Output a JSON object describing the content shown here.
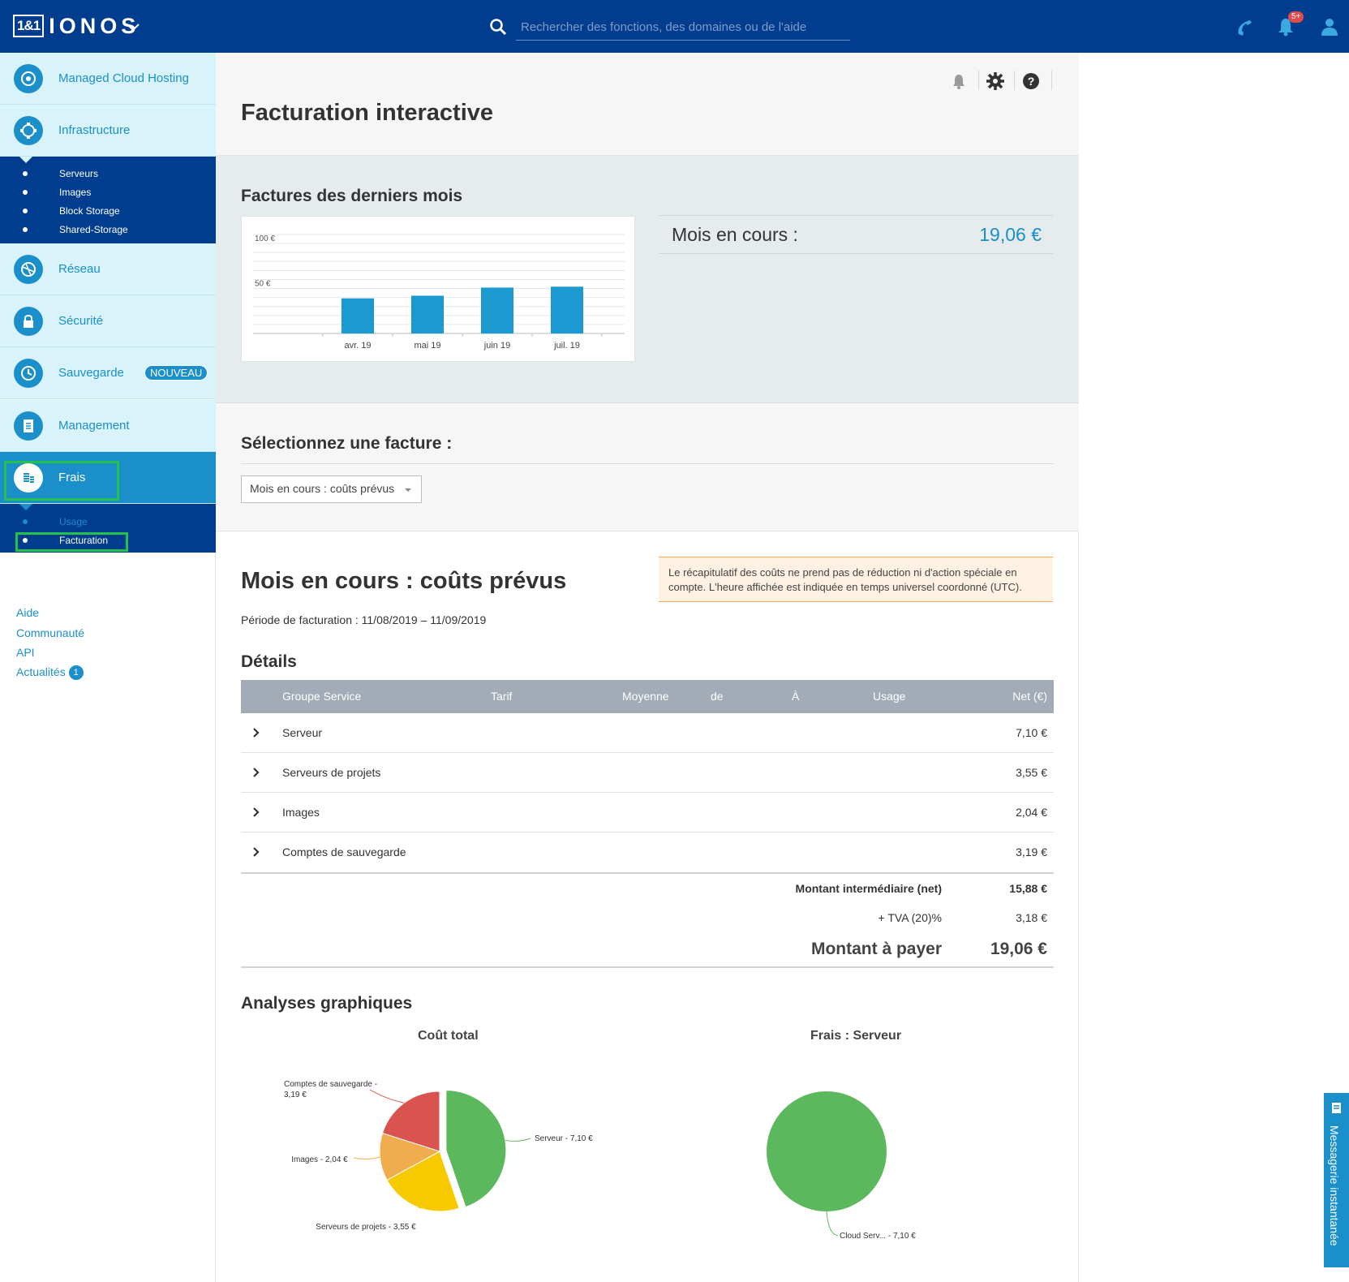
{
  "topbar": {
    "logo_box": "1&1",
    "logo_text": "IONOS",
    "search_placeholder": "Rechercher des fonctions, des domaines ou de l'aide",
    "notification_count": "5+"
  },
  "sidebar": {
    "items": [
      {
        "label": "Managed Cloud Hosting",
        "icon": "cloud-hosting-icon"
      },
      {
        "label": "Infrastructure",
        "icon": "infrastructure-icon"
      },
      {
        "label": "Réseau",
        "icon": "network-icon"
      },
      {
        "label": "Sécurité",
        "icon": "lock-icon"
      },
      {
        "label": "Sauvegarde",
        "icon": "backup-clock-icon",
        "badge": "NOUVEAU"
      },
      {
        "label": "Management",
        "icon": "clipboard-icon"
      },
      {
        "label": "Frais",
        "icon": "coins-icon"
      }
    ],
    "infrastructure_sub": [
      "Serveurs",
      "Images",
      "Block Storage",
      "Shared-Storage"
    ],
    "frais_sub": [
      "Usage",
      "Facturation"
    ],
    "links": [
      "Aide",
      "Communauté",
      "API",
      "Actualités"
    ],
    "actualites_count": "1"
  },
  "header": {
    "title": "Facturation interactive"
  },
  "invoices": {
    "section_title": "Factures des derniers mois",
    "current_month_label": "Mois en cours :",
    "current_month_value": "19,06 €"
  },
  "chart_data": {
    "type": "bar",
    "categories": [
      "avr. 19",
      "mai 19",
      "juin 19",
      "juil. 19"
    ],
    "values": [
      39,
      42,
      51,
      52
    ],
    "ylim": [
      0,
      110
    ],
    "yticks": [
      {
        "value": 50,
        "label": "50 €"
      },
      {
        "value": 100,
        "label": "100 €"
      }
    ],
    "grid": true,
    "color": "#1a9ad0"
  },
  "select": {
    "title": "Sélectionnez une facture :",
    "value": "Mois en cours : coûts prévus"
  },
  "costs": {
    "title": "Mois en cours : coûts prévus",
    "notice": "Le récapitulatif des coûts ne prend pas de réduction ni d'action spéciale en compte. L'heure affichée est indiquée en temps universel coordonné (UTC).",
    "period": "Période de facturation : 11/08/2019 – 11/09/2019",
    "details_title": "Détails"
  },
  "table": {
    "headers": [
      "Groupe Service",
      "Tarif",
      "Moyenne",
      "de",
      "À",
      "Usage",
      "Net (€)"
    ],
    "rows": [
      {
        "name": "Serveur",
        "net": "7,10 €"
      },
      {
        "name": "Serveurs de projets",
        "net": "3,55 €"
      },
      {
        "name": "Images",
        "net": "2,04 €"
      },
      {
        "name": "Comptes de sauvegarde",
        "net": "3,19 €"
      }
    ],
    "subtotal_label": "Montant intermédiaire (net)",
    "subtotal_value": "15,88 €",
    "vat_label": "+ TVA (20)%",
    "vat_value": "3,18 €",
    "total_label": "Montant à payer",
    "total_value": "19,06 €"
  },
  "graphs": {
    "title": "Analyses graphiques",
    "pie1": {
      "title": "Coût total",
      "slices": [
        {
          "label": "Serveur - 7,10 €",
          "value": 7.1,
          "color": "#5cb85c"
        },
        {
          "label": "Serveurs de projets - 3,55 €",
          "value": 3.55,
          "color": "#f7c900"
        },
        {
          "label": "Images - 2,04 €",
          "value": 2.04,
          "color": "#f0ad4e"
        },
        {
          "label_line1": "Comptes de sauvegarde -",
          "label_line2": "3,19 €",
          "value": 3.19,
          "color": "#d9534f"
        }
      ]
    },
    "pie2": {
      "title": "Frais : Serveur",
      "slices": [
        {
          "label": "Cloud Serv... - 7,10 €",
          "value": 7.1,
          "color": "#5cb85c"
        }
      ]
    }
  },
  "chat": {
    "label": "Messagerie instantanée"
  },
  "colors": {
    "brand_dark": "#003d8f",
    "accent": "#1a8fc9",
    "highlight": "#26c14d"
  }
}
